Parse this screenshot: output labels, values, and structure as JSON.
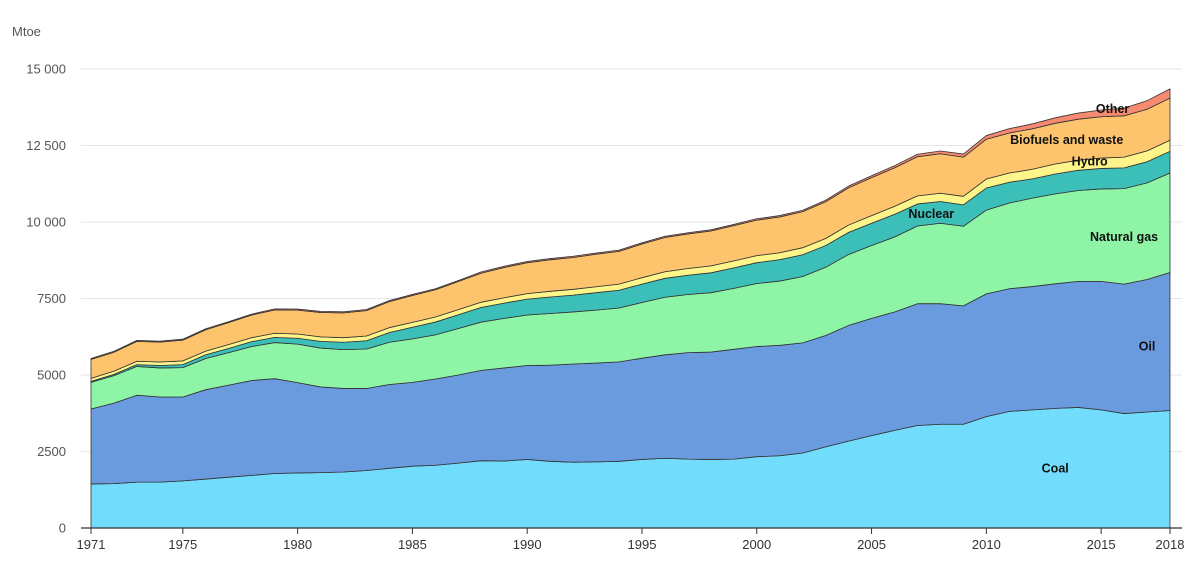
{
  "chart_data": {
    "type": "area",
    "stacked": true,
    "ylabel": "Mtoe",
    "ylim": [
      0,
      15000
    ],
    "yticks": [
      0,
      2500,
      5000,
      7500,
      10000,
      12500,
      15000
    ],
    "ytick_labels": [
      "0",
      "2500",
      "5000",
      "7500",
      "10 000",
      "12 500",
      "15 000"
    ],
    "xticks": [
      1971,
      1975,
      1980,
      1985,
      1990,
      1995,
      2000,
      2005,
      2010,
      2015,
      2018
    ],
    "xtick_labels": [
      "1971",
      "1975",
      "1980",
      "1985",
      "1990",
      "1995",
      "2000",
      "2005",
      "2010",
      "2015",
      "2018"
    ],
    "grid": true,
    "x": [
      1971,
      1972,
      1973,
      1974,
      1975,
      1976,
      1977,
      1978,
      1979,
      1980,
      1981,
      1982,
      1983,
      1984,
      1985,
      1986,
      1987,
      1988,
      1989,
      1990,
      1991,
      1992,
      1993,
      1994,
      1995,
      1996,
      1997,
      1998,
      1999,
      2000,
      2001,
      2002,
      2003,
      2004,
      2005,
      2006,
      2007,
      2008,
      2009,
      2010,
      2011,
      2012,
      2013,
      2014,
      2015,
      2016,
      2017,
      2018
    ],
    "series": [
      {
        "name": "Coal",
        "color": "#72dcfc",
        "values": [
          1440,
          1450,
          1500,
          1500,
          1540,
          1600,
          1660,
          1720,
          1780,
          1800,
          1810,
          1830,
          1880,
          1950,
          2020,
          2050,
          2120,
          2200,
          2190,
          2240,
          2180,
          2150,
          2160,
          2180,
          2240,
          2280,
          2250,
          2240,
          2250,
          2330,
          2360,
          2450,
          2650,
          2840,
          3020,
          3190,
          3350,
          3390,
          3390,
          3640,
          3810,
          3860,
          3910,
          3940,
          3860,
          3740,
          3790,
          3840
        ]
      },
      {
        "name": "Oil",
        "color": "#6b9bdf",
        "values": [
          2450,
          2630,
          2840,
          2780,
          2740,
          2920,
          3010,
          3100,
          3100,
          2950,
          2800,
          2730,
          2680,
          2740,
          2740,
          2820,
          2880,
          2950,
          3040,
          3070,
          3140,
          3210,
          3230,
          3250,
          3310,
          3380,
          3480,
          3510,
          3590,
          3600,
          3610,
          3600,
          3640,
          3780,
          3830,
          3870,
          3980,
          3940,
          3870,
          4010,
          4010,
          4030,
          4070,
          4120,
          4200,
          4230,
          4330,
          4510
        ]
      },
      {
        "name": "Natural gas",
        "color": "#8ef5a6",
        "values": [
          870,
          900,
          940,
          950,
          960,
          1020,
          1060,
          1110,
          1180,
          1260,
          1270,
          1270,
          1290,
          1380,
          1420,
          1440,
          1520,
          1580,
          1620,
          1650,
          1690,
          1700,
          1730,
          1760,
          1820,
          1880,
          1900,
          1940,
          1990,
          2060,
          2100,
          2170,
          2230,
          2320,
          2380,
          2450,
          2540,
          2630,
          2600,
          2740,
          2800,
          2890,
          2940,
          2970,
          3020,
          3120,
          3160,
          3250
        ]
      },
      {
        "name": "Nuclear",
        "color": "#3dbfb9",
        "values": [
          30,
          40,
          60,
          80,
          100,
          120,
          140,
          160,
          170,
          190,
          220,
          240,
          270,
          320,
          380,
          420,
          450,
          480,
          500,
          520,
          540,
          550,
          570,
          580,
          600,
          620,
          630,
          650,
          670,
          680,
          700,
          710,
          710,
          720,
          730,
          740,
          720,
          710,
          700,
          720,
          680,
          630,
          650,
          660,
          670,
          680,
          690,
          710
        ]
      },
      {
        "name": "Hydro",
        "color": "#fef58a",
        "values": [
          100,
          105,
          110,
          115,
          120,
          120,
          125,
          130,
          135,
          140,
          145,
          150,
          155,
          160,
          160,
          165,
          165,
          170,
          175,
          180,
          185,
          190,
          195,
          200,
          210,
          215,
          220,
          225,
          230,
          230,
          225,
          230,
          230,
          240,
          250,
          260,
          265,
          270,
          280,
          295,
          300,
          315,
          325,
          330,
          340,
          350,
          355,
          360
        ]
      },
      {
        "name": "Biofuels and waste",
        "color": "#fdc46d",
        "values": [
          620,
          620,
          650,
          650,
          680,
          700,
          720,
          740,
          760,
          780,
          800,
          810,
          830,
          850,
          880,
          890,
          920,
          950,
          990,
          1010,
          1030,
          1040,
          1060,
          1070,
          1100,
          1120,
          1130,
          1140,
          1150,
          1160,
          1170,
          1180,
          1200,
          1220,
          1240,
          1260,
          1280,
          1290,
          1280,
          1300,
          1310,
          1320,
          1330,
          1340,
          1350,
          1350,
          1360,
          1380
        ]
      },
      {
        "name": "Other",
        "color": "#f58a70",
        "values": [
          30,
          30,
          30,
          30,
          30,
          30,
          30,
          30,
          35,
          35,
          35,
          35,
          35,
          35,
          35,
          35,
          35,
          40,
          40,
          40,
          40,
          40,
          40,
          40,
          40,
          40,
          40,
          40,
          40,
          45,
          45,
          45,
          50,
          55,
          60,
          70,
          80,
          90,
          100,
          120,
          140,
          160,
          180,
          200,
          220,
          250,
          280,
          300
        ]
      }
    ],
    "annotations": [
      "Coal",
      "Oil",
      "Natural gas",
      "Nuclear",
      "Hydro",
      "Biofuels and waste",
      "Other"
    ]
  }
}
